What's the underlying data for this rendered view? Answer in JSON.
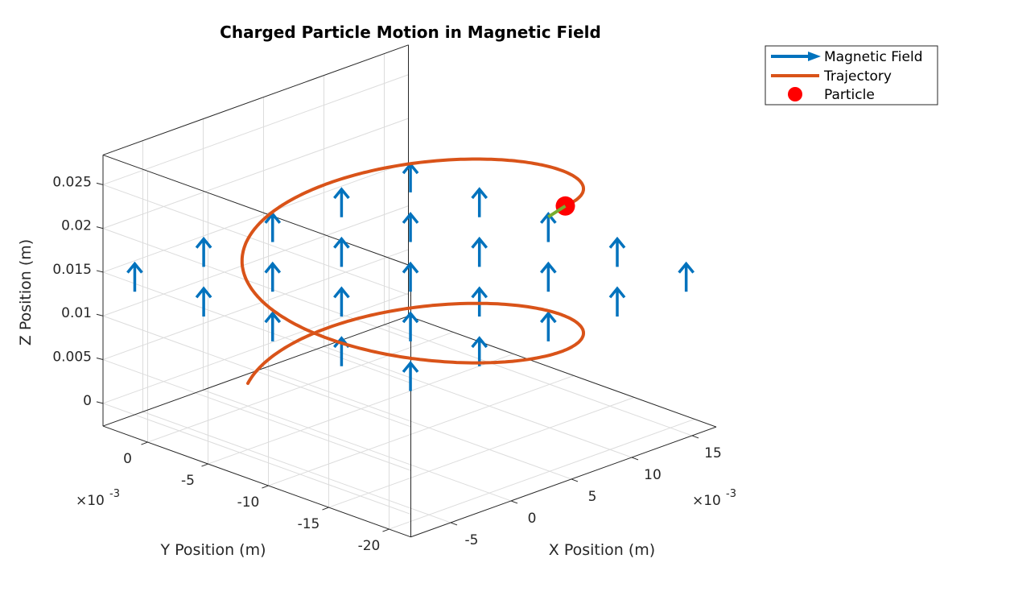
{
  "chart_data": {
    "type": "line3d",
    "title": "Charged Particle Motion in Magnetic Field",
    "xlabel": "X Position (m)",
    "ylabel": "Y Position (m)",
    "zlabel": "Z Position (m)",
    "x_exponent_label": "×10",
    "x_exponent_power": "-3",
    "y_exponent_label": "×10",
    "y_exponent_power": "-3",
    "xlim": [
      -0.0083,
      0.017
    ],
    "ylim": [
      -0.0218,
      0.0037
    ],
    "zlim": [
      -0.0026,
      0.0284
    ],
    "xticks": [
      -0.005,
      0,
      0.005,
      0.01,
      0.015
    ],
    "xtick_labels": [
      "-5",
      "0",
      "5",
      "10",
      "15"
    ],
    "yticks": [
      0,
      -0.005,
      -0.01,
      -0.015,
      -0.02
    ],
    "ytick_labels": [
      "0",
      "-5",
      "-10",
      "-15",
      "-20"
    ],
    "zticks": [
      0,
      0.005,
      0.01,
      0.015,
      0.02,
      0.025
    ],
    "ztick_labels": [
      "0",
      "0.005",
      "0.01",
      "0.015",
      "0.02",
      "0.025"
    ],
    "grid": true,
    "view": "isometric (az ≈ -45°)",
    "legend": {
      "location": "top-right (outside)",
      "entries": [
        "Magnetic Field",
        "Trajectory",
        "Particle"
      ]
    },
    "series": [
      {
        "name": "Magnetic Field",
        "type": "quiver3",
        "color": "#0072BD",
        "x": [
          -0.00692,
          -0.00121,
          0.0045,
          0.01021,
          0.01592
        ],
        "y": [
          -0.02039,
          -0.01468,
          -0.00897,
          -0.00326,
          0.00245
        ],
        "z": 0.0127,
        "u": 0,
        "v": 0,
        "w": 0.0032
      },
      {
        "name": "Trajectory",
        "type": "helix",
        "color": "#D95319",
        "center_xy": [
          0.005,
          -0.00866
        ],
        "radius": 0.01,
        "start_point": [
          0,
          0,
          0
        ],
        "start_angle_deg": 120,
        "sweep_deg": -552,
        "z_end": 0.0253
      },
      {
        "name": "Particle",
        "type": "marker",
        "color": "#FF0000",
        "position": [
          0.0081,
          -0.0182,
          0.0253
        ]
      },
      {
        "name": "Velocity",
        "type": "arrow",
        "color": "#77AC30",
        "direction": [
          -0.951,
          -0.309,
          0.3
        ]
      }
    ]
  }
}
